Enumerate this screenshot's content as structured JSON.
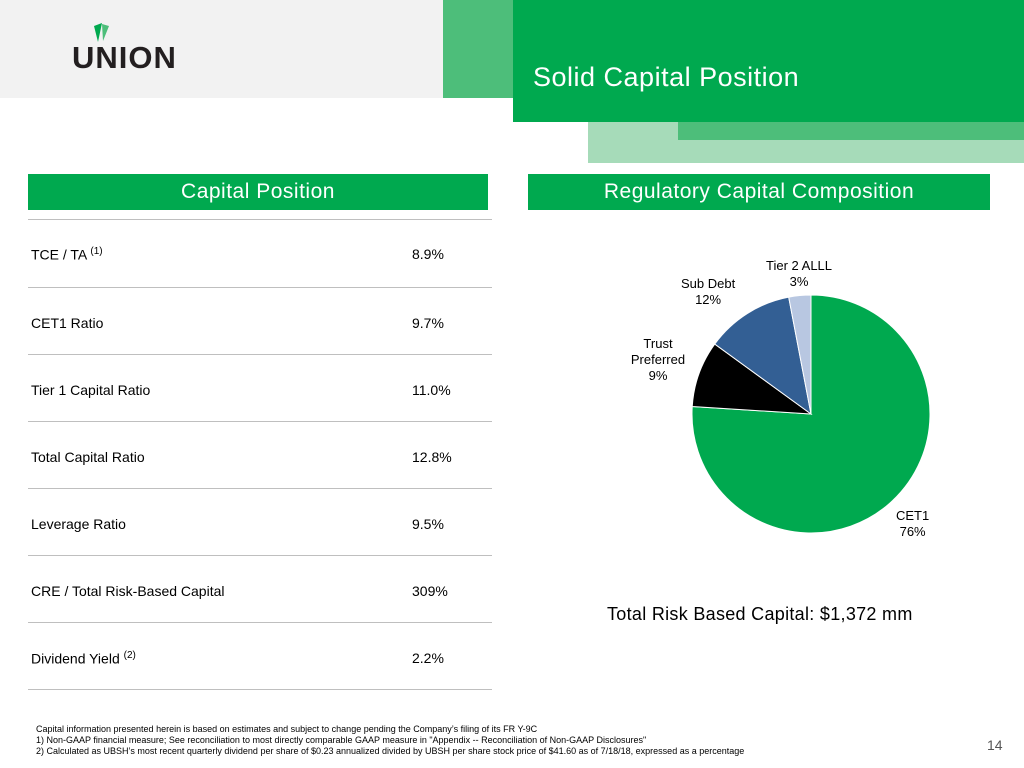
{
  "header": {
    "title": "Solid Capital Position",
    "logo_text": "UNION"
  },
  "sections": {
    "left_title": "Capital Position",
    "right_title": "Regulatory Capital Composition"
  },
  "table": {
    "rows": [
      {
        "label": "TCE / TA",
        "note": "(1)",
        "value": "8.9%"
      },
      {
        "label": "CET1 Ratio",
        "note": "",
        "value": "9.7%"
      },
      {
        "label": "Tier 1 Capital Ratio",
        "note": "",
        "value": "11.0%"
      },
      {
        "label": "Total Capital Ratio",
        "note": "",
        "value": "12.8%"
      },
      {
        "label": "Leverage Ratio",
        "note": "",
        "value": "9.5%"
      },
      {
        "label": "CRE / Total Risk-Based Capital",
        "note": "",
        "value": "309%"
      },
      {
        "label": "Dividend Yield",
        "note": "(2)",
        "value": "2.2%"
      }
    ]
  },
  "chart_data": {
    "type": "pie",
    "title": "Regulatory Capital Composition",
    "slices": [
      {
        "name": "CET1",
        "value": 76,
        "label": "76%",
        "color": "#00a94f"
      },
      {
        "name": "Trust Preferred",
        "value": 9,
        "label": "9%",
        "color": "#000000"
      },
      {
        "name": "Sub Debt",
        "value": 12,
        "label": "12%",
        "color": "#335f94"
      },
      {
        "name": "Tier 2 ALLL",
        "value": 3,
        "label": "3%",
        "color": "#b8c7e1"
      }
    ],
    "caption": "Total Risk Based Capital: $1,372 mm"
  },
  "footer": {
    "line1": "Capital information presented herein is based on estimates and subject to change pending the Company’s filing of its FR Y-9C",
    "line2": "1) Non-GAAP financial measure; See reconciliation to most directly comparable GAAP measure in \"Appendix -- Reconciliation of Non-GAAP Disclosures\"",
    "line3": "2) Calculated as UBSH’s most recent quarterly dividend per share of $0.23 annualized divided by UBSH per share stock price of $41.60 as of 7/18/18, expressed as a percentage",
    "page_number": "14"
  },
  "colors": {
    "brand_green": "#00a94f",
    "mid_green": "#4dbe7a",
    "light_green": "#a6dbb9"
  }
}
